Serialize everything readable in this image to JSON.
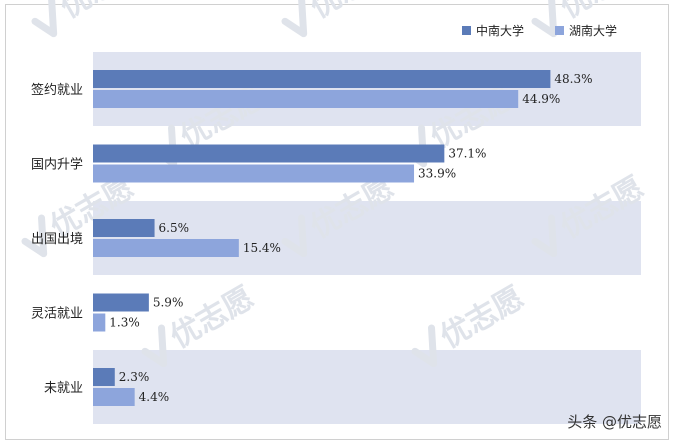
{
  "chart_data": {
    "type": "bar",
    "orientation": "horizontal",
    "categories": [
      "签约就业",
      "国内升学",
      "出国出境",
      "灵活就业",
      "未就业"
    ],
    "series": [
      {
        "name": "中南大学",
        "values": [
          48.3,
          37.1,
          6.5,
          5.9,
          2.3
        ],
        "color": "#5b7bb8"
      },
      {
        "name": "湖南大学",
        "values": [
          44.9,
          33.9,
          15.4,
          1.3,
          4.4
        ],
        "color": "#8da5dc"
      }
    ],
    "value_labels": [
      [
        "48.3%",
        "37.1%",
        "6.5%",
        "5.9%",
        "2.3%"
      ],
      [
        "44.9%",
        "33.9%",
        "15.4%",
        "1.3%",
        "4.4%"
      ]
    ],
    "xlim": [
      0,
      60
    ],
    "band_color": "#dfe3f0",
    "legend_position": "top-right",
    "grid": false
  },
  "watermark": "优志愿",
  "footer": "头条 @优志愿"
}
